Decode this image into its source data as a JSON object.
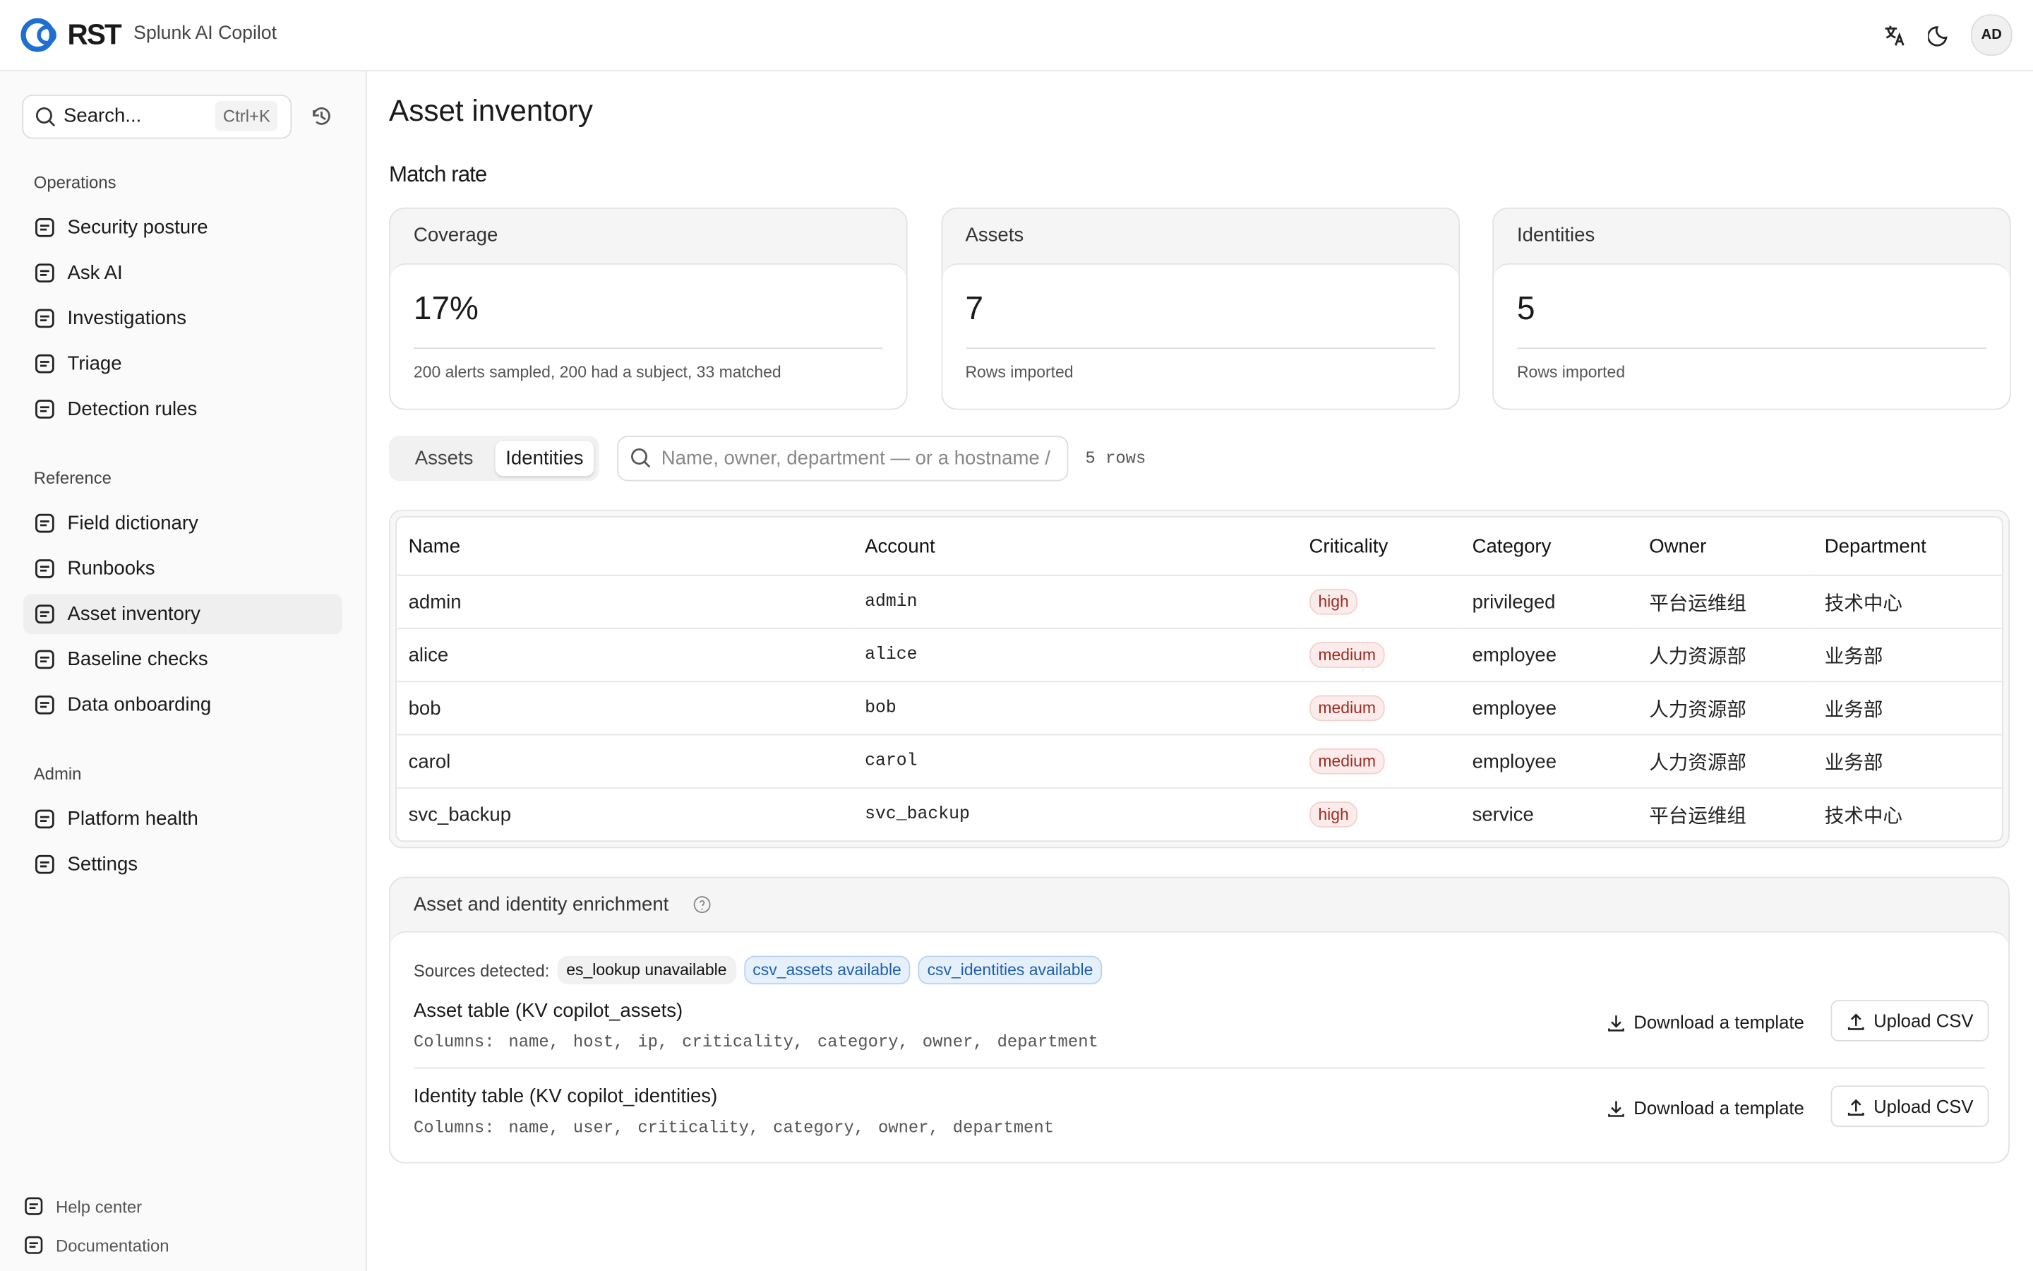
{
  "header": {
    "logo": "RST",
    "product": "Splunk AI Copilot",
    "avatar": "AD"
  },
  "sidebar": {
    "search": "Search...",
    "shortcut": "Ctrl+K",
    "sections": [
      {
        "title": "Operations",
        "items": [
          "Security posture",
          "Ask AI",
          "Investigations",
          "Triage",
          "Detection rules"
        ]
      },
      {
        "title": "Reference",
        "items": [
          "Field dictionary",
          "Runbooks",
          "Asset inventory",
          "Baseline checks",
          "Data onboarding"
        ]
      },
      {
        "title": "Admin",
        "items": [
          "Platform health",
          "Settings"
        ]
      }
    ],
    "footer": [
      "Help center",
      "Documentation"
    ]
  },
  "page": {
    "title": "Asset inventory",
    "section": "Match rate",
    "stats": [
      {
        "label": "Coverage",
        "value": "17%",
        "note": "200 alerts sampled, 200 had a subject, 33 matched"
      },
      {
        "label": "Assets",
        "value": "7",
        "note": "Rows imported"
      },
      {
        "label": "Identities",
        "value": "5",
        "note": "Rows imported"
      }
    ],
    "tabs": [
      "Assets",
      "Identities"
    ],
    "filter_placeholder": "Name, owner, department — or a hostname /",
    "row_count": "5 rows",
    "table": {
      "columns": [
        "Name",
        "Account",
        "Criticality",
        "Category",
        "Owner",
        "Department"
      ],
      "rows": [
        [
          "admin",
          "admin",
          "high",
          "privileged",
          "平台运维组",
          "技术中心"
        ],
        [
          "alice",
          "alice",
          "medium",
          "employee",
          "人力资源部",
          "业务部"
        ],
        [
          "bob",
          "bob",
          "medium",
          "employee",
          "人力资源部",
          "业务部"
        ],
        [
          "carol",
          "carol",
          "medium",
          "employee",
          "人力资源部",
          "业务部"
        ],
        [
          "svc_backup",
          "svc_backup",
          "high",
          "service",
          "平台运维组",
          "技术中心"
        ]
      ]
    },
    "enrichment": {
      "title": "Asset and identity enrichment",
      "sources_label": "Sources detected:",
      "sources": [
        "es_lookup unavailable",
        "csv_assets available",
        "csv_identities available"
      ],
      "tables": [
        {
          "title": "Asset table (KV copilot_assets)",
          "columns": "Columns: name, host, ip, criticality, category, owner, department",
          "download": "Download a template",
          "upload": "Upload CSV"
        },
        {
          "title": "Identity table (KV copilot_identities)",
          "columns": "Columns: name, user, criticality, category, owner, department",
          "download": "Download a template",
          "upload": "Upload CSV"
        }
      ]
    }
  }
}
